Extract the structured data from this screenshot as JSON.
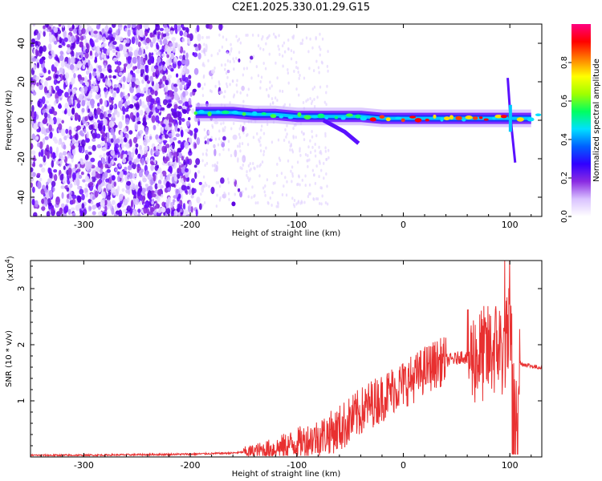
{
  "title": "C2E1.2025.330.01.29.G15",
  "chart_data": [
    {
      "type": "heatmap",
      "xlabel": "Height of straight line (km)",
      "ylabel": "Frequency (Hz)",
      "xlim": [
        -350,
        130
      ],
      "ylim": [
        -50,
        50
      ],
      "xticks": [
        -300,
        -200,
        -100,
        0,
        100
      ],
      "yticks": [
        -40,
        -20,
        0,
        20,
        40
      ],
      "colorbar": {
        "label": "Normalized spectral amplitude",
        "range": [
          0,
          1
        ],
        "ticks": [
          "0.0",
          "0.2",
          "0.4",
          "0.6",
          "0.8"
        ],
        "tick_values": [
          0.0,
          0.2,
          0.4,
          0.6,
          0.8
        ],
        "colormap": [
          "#ffffff",
          "#d9c2ff",
          "#8a2be2",
          "#3000ff",
          "#0060ff",
          "#00e0ff",
          "#00ff60",
          "#a0ff00",
          "#ffff00",
          "#ff8000",
          "#ff0000",
          "#ff0080"
        ]
      },
      "ridge_points": [
        {
          "x": -195,
          "y": 4,
          "amp": 0.35
        },
        {
          "x": -180,
          "y": 4,
          "amp": 0.4
        },
        {
          "x": -160,
          "y": 4,
          "amp": 0.45
        },
        {
          "x": -140,
          "y": 3,
          "amp": 0.5
        },
        {
          "x": -120,
          "y": 3,
          "amp": 0.55
        },
        {
          "x": -100,
          "y": 2,
          "amp": 0.5
        },
        {
          "x": -80,
          "y": 2,
          "amp": 0.55
        },
        {
          "x": -60,
          "y": 2,
          "amp": 0.6
        },
        {
          "x": -40,
          "y": 2,
          "amp": 0.7
        },
        {
          "x": -20,
          "y": 1,
          "amp": 0.8
        },
        {
          "x": 0,
          "y": 1,
          "amp": 0.75
        },
        {
          "x": 20,
          "y": 1,
          "amp": 0.7
        },
        {
          "x": 40,
          "y": 1,
          "amp": 0.75
        },
        {
          "x": 60,
          "y": 1,
          "amp": 0.8
        },
        {
          "x": 80,
          "y": 1,
          "amp": 0.8
        },
        {
          "x": 100,
          "y": 1,
          "amp": 0.7
        },
        {
          "x": 120,
          "y": 1,
          "amp": 0.6
        }
      ]
    },
    {
      "type": "line",
      "xlabel": "Height of straight line (km)",
      "ylabel": "SNR (10 * v/v)",
      "yscale_label": "(x10",
      "yscale_exponent": "4",
      "yscale_suffix": ")",
      "xlim": [
        -350,
        130
      ],
      "ylim": [
        0,
        3.5
      ],
      "xticks": [
        -300,
        -200,
        -100,
        0,
        100
      ],
      "yticks": [
        1,
        2,
        3
      ],
      "color": "#e83030",
      "series": [
        {
          "x": [
            -350,
            -300,
            -250,
            -200,
            -160,
            -140,
            -120,
            -100,
            -80,
            -60,
            -50,
            -40,
            -30,
            -20,
            -10,
            0,
            10,
            20,
            30,
            40,
            50,
            55,
            60,
            70,
            80,
            90,
            95,
            100,
            103,
            105,
            108,
            110,
            115,
            120,
            125,
            130
          ],
          "y": [
            0.03,
            0.03,
            0.04,
            0.05,
            0.07,
            0.1,
            0.15,
            0.25,
            0.35,
            0.5,
            0.65,
            0.8,
            0.95,
            1.05,
            1.2,
            1.3,
            1.4,
            1.55,
            1.65,
            1.72,
            1.75,
            1.8,
            1.75,
            1.8,
            1.85,
            2.0,
            1.8,
            2.3,
            1.5,
            0.7,
            1.6,
            1.65,
            1.65,
            1.62,
            1.6,
            1.6
          ]
        }
      ]
    }
  ]
}
